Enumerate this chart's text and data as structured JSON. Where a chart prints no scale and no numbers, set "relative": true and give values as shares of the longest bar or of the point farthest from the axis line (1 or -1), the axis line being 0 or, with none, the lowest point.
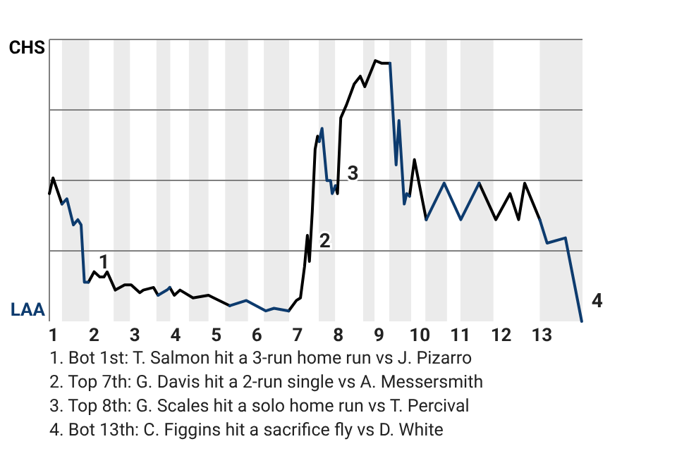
{
  "chart_data": {
    "type": "line",
    "relative": true,
    "grid": true,
    "x": [
      0.9,
      0.99,
      1.21,
      1.33,
      1.49,
      1.6,
      1.68,
      1.76,
      1.86,
      2.0,
      2.14,
      2.24,
      2.32,
      2.52,
      2.75,
      2.85,
      2.91,
      3.12,
      3.21,
      3.46,
      3.57,
      3.79,
      3.86,
      3.97,
      4.11,
      4.43,
      4.81,
      4.94,
      5.33,
      5.74,
      6.22,
      6.42,
      6.78,
      6.97,
      7.07,
      7.17,
      7.24,
      7.29,
      7.36,
      7.43,
      7.49,
      7.53,
      7.6,
      7.72,
      7.81,
      7.85,
      7.93,
      7.98,
      8.06,
      8.2,
      8.39,
      8.54,
      8.65,
      8.91,
      9.06,
      9.14,
      9.27,
      9.42,
      9.49,
      9.62,
      9.68,
      9.75,
      9.87,
      10.16,
      10.6,
      11.01,
      11.46,
      11.87,
      12.22,
      12.43,
      12.58,
      12.95,
      13.13,
      13.58,
      13.98
    ],
    "xlim": [
      0.9,
      14
    ],
    "xticks": [
      1,
      2,
      3,
      4,
      5,
      6,
      7,
      8,
      9,
      10,
      11,
      12,
      13
    ],
    "series": [
      {
        "color": "#000000",
        "values": [
          0.49,
          0.55,
          0.45,
          null,
          null,
          null,
          null,
          null,
          0.15,
          0.19,
          0.17,
          0.17,
          0.19,
          0.12,
          0.14,
          0.14,
          0.14,
          0.11,
          0.12,
          0.13,
          0.1,
          null,
          0.13,
          0.1,
          0.12,
          0.09,
          0.1,
          0.09,
          0.06,
          null,
          null,
          null,
          0.04,
          0.08,
          0.09,
          0.21,
          0.33,
          0.23,
          0.42,
          0.66,
          0.71,
          0.69,
          null,
          null,
          null,
          null,
          0.52,
          0.49,
          0.78,
          0.83,
          0.91,
          0.94,
          0.9,
          1.0,
          0.99,
          0.99,
          0.99,
          null,
          null,
          null,
          null,
          0.48,
          0.62,
          0.39,
          null,
          null,
          0.53,
          0.39,
          0.49,
          0.39,
          0.53,
          0.39,
          null,
          null,
          null
        ]
      },
      {
        "color": "#0d3b6e",
        "values": [
          null,
          null,
          0.45,
          0.47,
          0.37,
          0.39,
          0.37,
          0.15,
          0.15,
          null,
          null,
          null,
          null,
          null,
          null,
          null,
          null,
          null,
          null,
          null,
          0.1,
          0.12,
          0.13,
          null,
          null,
          null,
          null,
          null,
          0.06,
          0.08,
          0.04,
          0.05,
          0.04,
          null,
          null,
          null,
          null,
          null,
          null,
          null,
          null,
          0.69,
          0.74,
          0.54,
          0.54,
          0.49,
          0.52,
          null,
          null,
          null,
          null,
          null,
          null,
          null,
          null,
          null,
          0.99,
          0.6,
          0.77,
          0.45,
          0.49,
          0.48,
          null,
          0.39,
          0.53,
          0.39,
          0.53,
          null,
          null,
          null,
          null,
          0.39,
          0.3,
          0.32,
          0
        ]
      }
    ],
    "bands": [
      {
        "axis": "x",
        "from": 1.21,
        "to": 1.88,
        "color": "#ebebeb"
      },
      {
        "axis": "x",
        "from": 2.48,
        "to": 2.88,
        "color": "#ebebeb"
      },
      {
        "axis": "x",
        "from": 3.53,
        "to": 3.87,
        "color": "#ebebeb"
      },
      {
        "axis": "x",
        "from": 4.33,
        "to": 4.81,
        "color": "#ebebeb"
      },
      {
        "axis": "x",
        "from": 5.22,
        "to": 5.78,
        "color": "#ebebeb"
      },
      {
        "axis": "x",
        "from": 6.17,
        "to": 6.79,
        "color": "#ebebeb"
      },
      {
        "axis": "x",
        "from": 7.52,
        "to": 7.92,
        "color": "#ebebeb"
      },
      {
        "axis": "x",
        "from": 8.61,
        "to": 8.89,
        "color": "#ebebeb"
      },
      {
        "axis": "x",
        "from": 9.25,
        "to": 9.79,
        "color": "#ebebeb"
      },
      {
        "axis": "x",
        "from": 10.14,
        "to": 10.67,
        "color": "#ebebeb"
      },
      {
        "axis": "x",
        "from": 11.0,
        "to": 11.81,
        "color": "#ebebeb"
      },
      {
        "axis": "x",
        "from": 12.95,
        "to": 14,
        "color": "#ebebeb"
      }
    ],
    "annotations": [
      "CHS",
      "LAA",
      {
        "text": "1",
        "x": 1.86,
        "y": 0.15
      },
      {
        "text": "2",
        "x": 7.29,
        "y": 0.23
      },
      {
        "text": "3",
        "x": 7.98,
        "y": 0.49
      },
      {
        "text": "4",
        "x": 13.98,
        "y": 0
      },
      "1. Bot 1st: T. Salmon hit a 3-run home run vs J. Pizarro",
      "2. Top 7th: G. Davis hit a 2-run single vs A. Messersmith",
      "3. Top 8th: G. Scales hit a solo home run vs T. Percival",
      "4. Bot 13th: C. Figgins hit a sacrifice fly vs D. White"
    ]
  }
}
